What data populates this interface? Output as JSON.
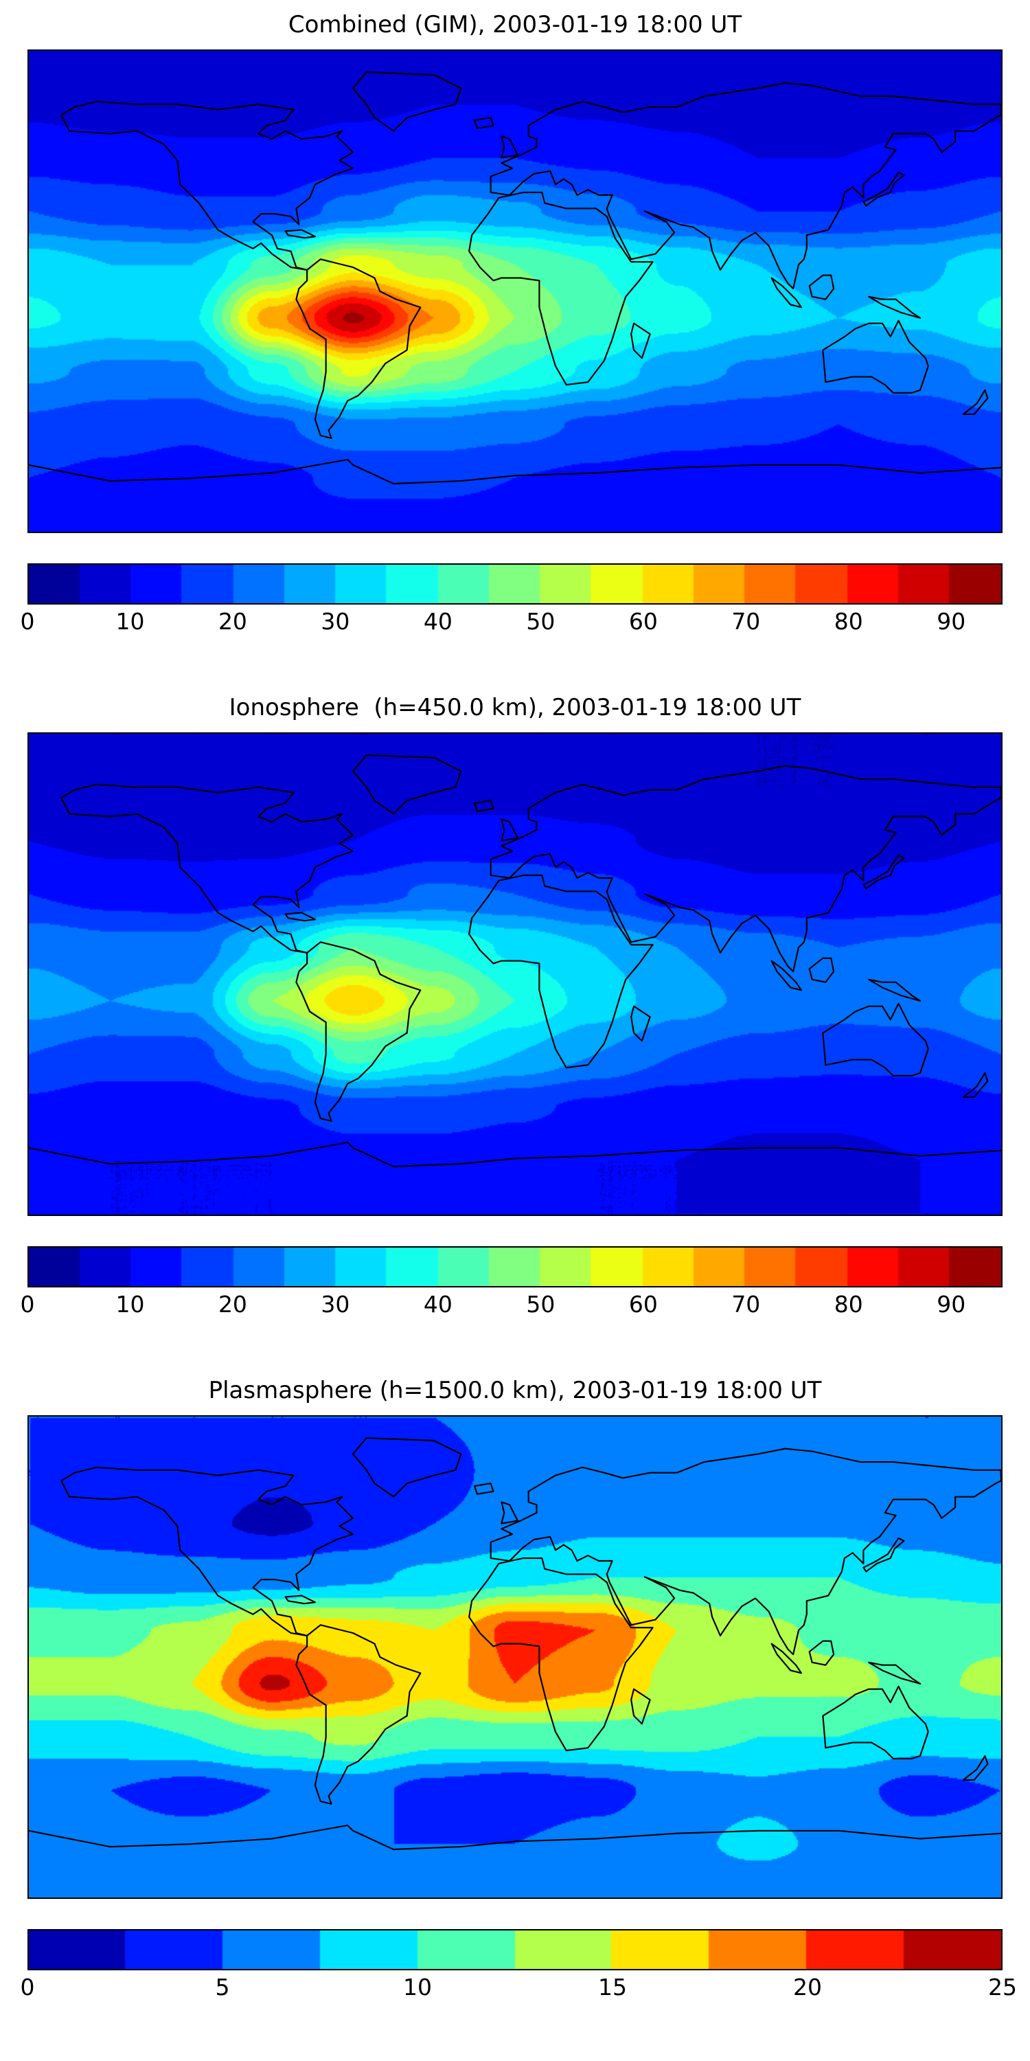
{
  "chart_data": [
    {
      "type": "heatmap",
      "title": "Combined (GIM), 2003-01-19 18:00 UT",
      "colormap": "jet",
      "projection": "equirectangular",
      "lon_range": [
        -180,
        180
      ],
      "lat_range": [
        -90,
        90
      ],
      "grid_lon": [
        -180,
        -150,
        -120,
        -90,
        -60,
        -30,
        0,
        30,
        60,
        90,
        120,
        150,
        180
      ],
      "grid_lat": [
        90,
        70,
        50,
        30,
        10,
        -10,
        -30,
        -50,
        -70,
        -90
      ],
      "values": [
        [
          7,
          7,
          7,
          7,
          7,
          7,
          7,
          7,
          7,
          7,
          7,
          7,
          7
        ],
        [
          9,
          8,
          8,
          8,
          9,
          10,
          10,
          9,
          8,
          7,
          7,
          8,
          9
        ],
        [
          13,
          12,
          11,
          11,
          13,
          15,
          15,
          14,
          12,
          10,
          10,
          11,
          13
        ],
        [
          20,
          18,
          16,
          16,
          22,
          28,
          26,
          22,
          18,
          15,
          15,
          17,
          20
        ],
        [
          33,
          30,
          30,
          42,
          58,
          52,
          45,
          40,
          34,
          30,
          28,
          29,
          33
        ],
        [
          36,
          33,
          34,
          68,
          91,
          70,
          50,
          42,
          37,
          32,
          30,
          31,
          36
        ],
        [
          26,
          24,
          24,
          38,
          56,
          48,
          40,
          34,
          27,
          24,
          22,
          23,
          26
        ],
        [
          19,
          17,
          16,
          19,
          24,
          24,
          22,
          19,
          17,
          16,
          15,
          16,
          19
        ],
        [
          15,
          14,
          13,
          14,
          16,
          16,
          15,
          14,
          13,
          13,
          13,
          13,
          15
        ],
        [
          13,
          13,
          13,
          13,
          13,
          13,
          13,
          13,
          13,
          13,
          13,
          13,
          13
        ]
      ],
      "vmin": 0,
      "vmax": 95,
      "contour_step": 5,
      "colorbar_ticks": [
        0,
        10,
        20,
        30,
        40,
        50,
        60,
        70,
        80,
        90
      ],
      "peak": {
        "value": 91,
        "lon": -60,
        "lat": -10,
        "region": "South America"
      }
    },
    {
      "type": "heatmap",
      "title": "Ionosphere  (h=450.0 km), 2003-01-19 18:00 UT",
      "colormap": "jet",
      "projection": "equirectangular",
      "lon_range": [
        -180,
        180
      ],
      "lat_range": [
        -90,
        90
      ],
      "grid_lon": [
        -180,
        -150,
        -120,
        -90,
        -60,
        -30,
        0,
        30,
        60,
        90,
        120,
        150,
        180
      ],
      "grid_lat": [
        90,
        70,
        50,
        30,
        10,
        -10,
        -30,
        -50,
        -70,
        -90
      ],
      "values": [
        [
          5,
          5,
          5,
          5,
          5,
          5,
          5,
          5,
          5,
          5,
          5,
          5,
          5
        ],
        [
          7,
          6,
          6,
          6,
          7,
          8,
          8,
          7,
          6,
          5,
          5,
          6,
          7
        ],
        [
          10,
          9,
          9,
          9,
          10,
          12,
          12,
          11,
          9,
          8,
          8,
          9,
          10
        ],
        [
          15,
          13,
          12,
          13,
          17,
          21,
          20,
          17,
          13,
          11,
          11,
          12,
          15
        ],
        [
          24,
          22,
          22,
          32,
          45,
          40,
          34,
          30,
          25,
          22,
          20,
          21,
          24
        ],
        [
          27,
          25,
          26,
          50,
          64,
          52,
          40,
          33,
          27,
          24,
          22,
          23,
          27
        ],
        [
          20,
          18,
          18,
          28,
          42,
          36,
          30,
          25,
          20,
          18,
          17,
          17,
          20
        ],
        [
          14,
          12,
          12,
          14,
          18,
          18,
          16,
          14,
          12,
          11,
          11,
          12,
          14
        ],
        [
          11,
          10,
          10,
          10,
          12,
          12,
          11,
          10,
          10,
          9,
          9,
          10,
          11
        ],
        [
          10,
          10,
          10,
          10,
          10,
          10,
          10,
          10,
          10,
          10,
          10,
          10,
          10
        ]
      ],
      "vmin": 0,
      "vmax": 95,
      "contour_step": 5,
      "colorbar_ticks": [
        0,
        10,
        20,
        30,
        40,
        50,
        60,
        70,
        80,
        90
      ],
      "peak": {
        "value": 64,
        "lon": -60,
        "lat": -10,
        "region": "South America"
      }
    },
    {
      "type": "heatmap",
      "title": "Plasmasphere (h=1500.0 km), 2003-01-19 18:00 UT",
      "colormap": "jet",
      "projection": "equirectangular",
      "lon_range": [
        -180,
        180
      ],
      "lat_range": [
        -90,
        90
      ],
      "grid_lon": [
        -180,
        -150,
        -120,
        -90,
        -60,
        -30,
        0,
        30,
        60,
        90,
        120,
        150,
        180
      ],
      "grid_lat": [
        90,
        70,
        50,
        30,
        10,
        -10,
        -30,
        -50,
        -70,
        -90
      ],
      "values": [
        [
          5,
          5,
          5,
          5,
          5,
          5,
          6,
          6,
          6,
          6,
          6,
          5,
          5
        ],
        [
          5,
          4,
          4,
          3,
          3,
          4,
          6,
          6,
          6,
          6,
          6,
          6,
          5
        ],
        [
          5,
          4,
          3,
          2,
          3,
          5,
          6,
          7,
          7,
          7,
          7,
          6,
          5
        ],
        [
          7,
          6,
          6,
          6,
          7,
          8,
          9,
          10,
          10,
          10,
          10,
          9,
          8
        ],
        [
          12,
          12,
          13,
          17,
          16,
          15,
          21,
          20,
          15,
          13,
          12,
          12,
          12
        ],
        [
          13,
          13,
          15,
          23,
          19,
          16,
          20,
          18,
          14,
          13,
          13,
          12,
          13
        ],
        [
          9,
          9,
          10,
          12,
          13,
          11,
          11,
          11,
          11,
          10,
          10,
          9,
          9
        ],
        [
          5,
          5,
          4,
          5,
          6,
          4,
          3,
          4,
          6,
          7,
          6,
          4,
          5
        ],
        [
          6,
          6,
          6,
          6,
          5,
          5,
          5,
          6,
          7,
          8,
          7,
          6,
          6
        ],
        [
          6,
          6,
          6,
          6,
          6,
          6,
          6,
          6,
          6,
          6,
          6,
          6,
          6
        ]
      ],
      "vmin": 0,
      "vmax": 25,
      "contour_step": 2.5,
      "colorbar_ticks": [
        0,
        5,
        10,
        15,
        20,
        25
      ],
      "peak": {
        "value": 23,
        "lon": -90,
        "lat": -10,
        "region": "eastern Pacific / South America"
      }
    }
  ]
}
